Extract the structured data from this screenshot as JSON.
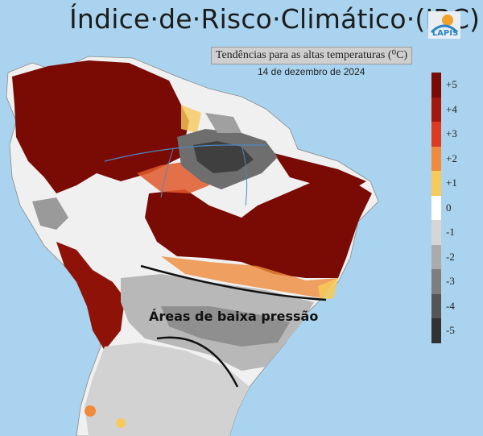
{
  "title": "Índice·de·Risco·Climático·(IRC)",
  "subtitle": "Tendências para as altas temperaturas (⁰C)",
  "date": "14 de dezembro de 2024",
  "logo_text": "LAPIS",
  "annotation": "Áreas de baixa pressão",
  "legend": {
    "items": [
      {
        "label": "+5",
        "color": "#7a0a04"
      },
      {
        "label": "+4",
        "color": "#a3180e"
      },
      {
        "label": "+3",
        "color": "#dd3a22"
      },
      {
        "label": "+2",
        "color": "#ef8b3c"
      },
      {
        "label": "+1",
        "color": "#f6cb5c"
      },
      {
        "label": "0",
        "color": "#ffffff"
      },
      {
        "label": "-1",
        "color": "#d6d6d6"
      },
      {
        "label": "-2",
        "color": "#ababab"
      },
      {
        "label": "-3",
        "color": "#7e7e7e"
      },
      {
        "label": "-4",
        "color": "#555555"
      },
      {
        "label": "-5",
        "color": "#323232"
      }
    ]
  },
  "colors": {
    "ocean": "#a9d3ee",
    "land_outside": "#f2f2f2",
    "rivers": "#4f88c0"
  }
}
